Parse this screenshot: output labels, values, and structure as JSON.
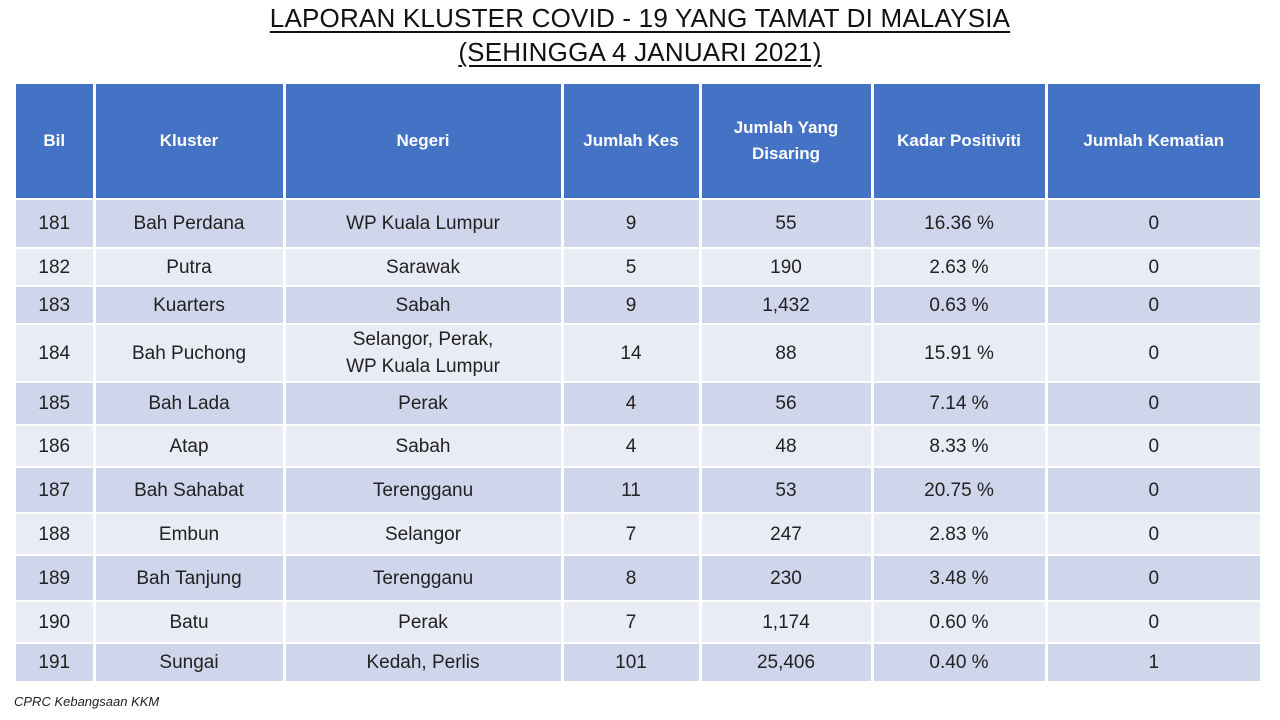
{
  "title_line1": "LAPORAN KLUSTER COVID - 19 YANG TAMAT DI MALAYSIA",
  "title_line2": "(SEHINGGA  4 JANUARI 2021)",
  "headers": {
    "bil": "Bil",
    "kluster": "Kluster",
    "negeri": "Negeri",
    "jumlah_kes": "Jumlah Kes",
    "jumlah_disaring": "Jumlah Yang Disaring",
    "kadar_positiviti": "Kadar Positiviti",
    "jumlah_kematian": "Jumlah Kematian"
  },
  "rows": [
    {
      "bil": "181",
      "kluster": "Bah Perdana",
      "negeri": "WP Kuala Lumpur",
      "kes": "9",
      "disaring": "55",
      "positiviti": "16.36 %",
      "kematian": "0"
    },
    {
      "bil": "182",
      "kluster": "Putra",
      "negeri": "Sarawak",
      "kes": "5",
      "disaring": "190",
      "positiviti": "2.63 %",
      "kematian": "0"
    },
    {
      "bil": "183",
      "kluster": "Kuarters",
      "negeri": "Sabah",
      "kes": "9",
      "disaring": "1,432",
      "positiviti": "0.63 %",
      "kematian": "0"
    },
    {
      "bil": "184",
      "kluster": "Bah Puchong",
      "negeri": "Selangor, Perak,",
      "negeri2": "WP Kuala Lumpur",
      "kes": "14",
      "disaring": "88",
      "positiviti": "15.91 %",
      "kematian": "0"
    },
    {
      "bil": "185",
      "kluster": "Bah Lada",
      "negeri": "Perak",
      "kes": "4",
      "disaring": "56",
      "positiviti": "7.14 %",
      "kematian": "0"
    },
    {
      "bil": "186",
      "kluster": "Atap",
      "negeri": "Sabah",
      "kes": "4",
      "disaring": "48",
      "positiviti": "8.33 %",
      "kematian": "0"
    },
    {
      "bil": "187",
      "kluster": "Bah Sahabat",
      "negeri": "Terengganu",
      "kes": "11",
      "disaring": "53",
      "positiviti": "20.75 %",
      "kematian": "0"
    },
    {
      "bil": "188",
      "kluster": "Embun",
      "negeri": "Selangor",
      "kes": "7",
      "disaring": "247",
      "positiviti": "2.83 %",
      "kematian": "0"
    },
    {
      "bil": "189",
      "kluster": "Bah Tanjung",
      "negeri": "Terengganu",
      "kes": "8",
      "disaring": "230",
      "positiviti": "3.48 %",
      "kematian": "0"
    },
    {
      "bil": "190",
      "kluster": "Batu",
      "negeri": "Perak",
      "kes": "7",
      "disaring": "1,174",
      "positiviti": "0.60 %",
      "kematian": "0"
    },
    {
      "bil": "191",
      "kluster": "Sungai",
      "negeri": "Kedah, Perlis",
      "kes": "101",
      "disaring": "25,406",
      "positiviti": "0.40 %",
      "kematian": "1"
    }
  ],
  "source": "CPRC Kebangsaan KKM"
}
